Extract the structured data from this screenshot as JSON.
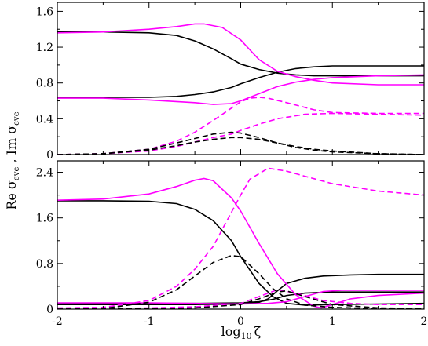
{
  "chart_data": [
    {
      "type": "line",
      "panel": "top",
      "xlim": [
        -2,
        2
      ],
      "ylim": [
        0,
        1.7
      ],
      "yticks": [
        "0",
        "0.4",
        "0.8",
        "1.2",
        "1.6"
      ],
      "ytick_values": [
        0,
        0.4,
        0.8,
        1.2,
        1.6
      ],
      "xticks": [
        "",
        "",
        "",
        "",
        ""
      ],
      "xtick_values": [
        -2,
        -1,
        0,
        1,
        2
      ],
      "grid": false,
      "series": [
        {
          "color": "#000000",
          "dash": "solid",
          "x": [
            -2,
            -1.5,
            -1,
            -0.7,
            -0.5,
            -0.3,
            -0.1,
            0,
            0.2,
            0.4,
            0.6,
            0.8,
            1,
            1.5,
            2
          ],
          "y": [
            1.37,
            1.37,
            1.36,
            1.33,
            1.27,
            1.18,
            1.07,
            1.01,
            0.95,
            0.91,
            0.89,
            0.88,
            0.88,
            0.88,
            0.88
          ]
        },
        {
          "color": "#000000",
          "dash": "solid",
          "x": [
            -2,
            -1.5,
            -1,
            -0.7,
            -0.5,
            -0.3,
            -0.1,
            0,
            0.2,
            0.4,
            0.6,
            0.8,
            1,
            1.5,
            2
          ],
          "y": [
            0.64,
            0.64,
            0.64,
            0.65,
            0.67,
            0.7,
            0.75,
            0.79,
            0.86,
            0.92,
            0.96,
            0.98,
            0.99,
            0.99,
            0.99
          ]
        },
        {
          "color": "#ff00ff",
          "dash": "solid",
          "x": [
            -2,
            -1.5,
            -1,
            -0.7,
            -0.5,
            -0.4,
            -0.2,
            0,
            0.1,
            0.2,
            0.4,
            0.6,
            0.8,
            1,
            1.5,
            2
          ],
          "y": [
            1.36,
            1.37,
            1.4,
            1.43,
            1.46,
            1.46,
            1.42,
            1.28,
            1.17,
            1.06,
            0.93,
            0.87,
            0.83,
            0.8,
            0.78,
            0.78
          ]
        },
        {
          "color": "#ff00ff",
          "dash": "solid",
          "x": [
            -2,
            -1.5,
            -1,
            -0.5,
            -0.3,
            -0.1,
            0,
            0.2,
            0.4,
            0.6,
            0.8,
            1,
            1.5,
            2
          ],
          "y": [
            0.63,
            0.63,
            0.61,
            0.58,
            0.56,
            0.57,
            0.6,
            0.68,
            0.76,
            0.81,
            0.84,
            0.86,
            0.88,
            0.89
          ]
        },
        {
          "color": "#ff00ff",
          "dash": "dashed",
          "x": [
            -2,
            -1.5,
            -1,
            -0.7,
            -0.5,
            -0.3,
            -0.1,
            0,
            0.1,
            0.2,
            0.3,
            0.5,
            0.8,
            1,
            1.5,
            2
          ],
          "y": [
            0,
            0.01,
            0.06,
            0.15,
            0.25,
            0.38,
            0.52,
            0.59,
            0.63,
            0.64,
            0.63,
            0.58,
            0.5,
            0.47,
            0.46,
            0.46
          ]
        },
        {
          "color": "#ff00ff",
          "dash": "dashed",
          "x": [
            -2,
            -1.5,
            -1,
            -0.7,
            -0.5,
            -0.3,
            -0.1,
            0,
            0.2,
            0.4,
            0.7,
            1,
            1.5,
            2
          ],
          "y": [
            0,
            0.01,
            0.04,
            0.09,
            0.14,
            0.19,
            0.23,
            0.27,
            0.34,
            0.4,
            0.45,
            0.46,
            0.45,
            0.44
          ]
        },
        {
          "color": "#000000",
          "dash": "dashed",
          "x": [
            -2,
            -1.5,
            -1,
            -0.7,
            -0.5,
            -0.3,
            -0.1,
            0,
            0.2,
            0.4,
            0.6,
            0.8,
            1,
            1.5,
            2
          ],
          "y": [
            0,
            0.01,
            0.06,
            0.13,
            0.18,
            0.23,
            0.25,
            0.24,
            0.19,
            0.13,
            0.08,
            0.05,
            0.03,
            0.01,
            0
          ]
        },
        {
          "color": "#000000",
          "dash": "dashed",
          "x": [
            -2,
            -1.5,
            -1,
            -0.7,
            -0.5,
            -0.3,
            -0.1,
            0,
            0.2,
            0.4,
            0.6,
            0.8,
            1,
            1.5,
            2
          ],
          "y": [
            0,
            0.01,
            0.05,
            0.1,
            0.14,
            0.17,
            0.19,
            0.19,
            0.17,
            0.13,
            0.09,
            0.06,
            0.04,
            0.01,
            0
          ]
        }
      ]
    },
    {
      "type": "line",
      "panel": "bottom",
      "xlim": [
        -2,
        2
      ],
      "ylim": [
        0,
        2.6
      ],
      "yticks": [
        "0",
        "0.8",
        "1.6",
        "2.4"
      ],
      "ytick_values": [
        0,
        0.8,
        1.6,
        2.4
      ],
      "xticks": [
        "-2",
        "-1",
        "0",
        "1",
        "2"
      ],
      "xtick_values": [
        -2,
        -1,
        0,
        1,
        2
      ],
      "xlabel": "log10 ζ",
      "ylabel": "Re σeve , Im σeve",
      "grid": false,
      "series": [
        {
          "color": "#000000",
          "dash": "solid",
          "x": [
            -2,
            -1.5,
            -1,
            -0.7,
            -0.5,
            -0.3,
            -0.1,
            0,
            0.2,
            0.35,
            0.5,
            0.7,
            1,
            1.5,
            2
          ],
          "y": [
            1.9,
            1.9,
            1.89,
            1.85,
            1.75,
            1.55,
            1.2,
            0.92,
            0.45,
            0.22,
            0.1,
            0.07,
            0.08,
            0.09,
            0.1
          ]
        },
        {
          "color": "#000000",
          "dash": "solid",
          "x": [
            -2,
            -1.5,
            -1,
            -0.5,
            0,
            0.2,
            0.3,
            0.4,
            0.5,
            0.7,
            0.9,
            1.2,
            1.5,
            2
          ],
          "y": [
            0.08,
            0.08,
            0.08,
            0.08,
            0.09,
            0.12,
            0.18,
            0.32,
            0.45,
            0.54,
            0.58,
            0.6,
            0.61,
            0.61
          ]
        },
        {
          "color": "#000000",
          "dash": "solid",
          "x": [
            -2,
            -1.5,
            -1,
            -0.5,
            0,
            0.2,
            0.35,
            0.5,
            0.7,
            1,
            1.5,
            2
          ],
          "y": [
            0.1,
            0.1,
            0.1,
            0.1,
            0.11,
            0.13,
            0.17,
            0.24,
            0.28,
            0.3,
            0.3,
            0.3
          ]
        },
        {
          "color": "#ff00ff",
          "dash": "solid",
          "x": [
            -2,
            -1.5,
            -1,
            -0.7,
            -0.5,
            -0.4,
            -0.3,
            -0.1,
            0,
            0.2,
            0.4,
            0.6,
            0.8,
            0.88,
            1,
            1.2,
            1.5,
            2
          ],
          "y": [
            1.91,
            1.93,
            2.02,
            2.15,
            2.26,
            2.29,
            2.25,
            1.95,
            1.72,
            1.15,
            0.62,
            0.25,
            0.05,
            0.02,
            0.08,
            0.18,
            0.24,
            0.28
          ]
        },
        {
          "color": "#ff00ff",
          "dash": "solid",
          "x": [
            -2,
            -1.5,
            -1,
            -0.5,
            0,
            0.3,
            0.5,
            0.7,
            0.9,
            1.1,
            1.5,
            2
          ],
          "y": [
            0.11,
            0.11,
            0.11,
            0.1,
            0.09,
            0.1,
            0.13,
            0.22,
            0.31,
            0.33,
            0.33,
            0.33
          ]
        },
        {
          "color": "#ff00ff",
          "dash": "dashed",
          "x": [
            -2,
            -1.5,
            -1,
            -0.7,
            -0.5,
            -0.3,
            -0.2,
            -0.1,
            0,
            0.1,
            0.3,
            0.5,
            0.7,
            1,
            1.5,
            2
          ],
          "y": [
            0.02,
            0.03,
            0.15,
            0.4,
            0.7,
            1.1,
            1.4,
            1.7,
            2.0,
            2.28,
            2.47,
            2.42,
            2.33,
            2.2,
            2.07,
            2.0
          ]
        },
        {
          "color": "#ff00ff",
          "dash": "dashed",
          "x": [
            -2,
            -1.5,
            -1,
            -0.5,
            0,
            0.2,
            0.4,
            0.6,
            0.9,
            1.2,
            1.5,
            2
          ],
          "y": [
            0.01,
            0.01,
            0.02,
            0.04,
            0.1,
            0.22,
            0.34,
            0.28,
            0.15,
            0.1,
            0.08,
            0.08
          ]
        },
        {
          "color": "#000000",
          "dash": "dashed",
          "x": [
            -2,
            -1.5,
            -1,
            -0.7,
            -0.5,
            -0.3,
            -0.1,
            0,
            0.2,
            0.35,
            0.5,
            0.7,
            1,
            1.5,
            2
          ],
          "y": [
            0,
            0.01,
            0.12,
            0.34,
            0.58,
            0.82,
            0.94,
            0.92,
            0.62,
            0.36,
            0.18,
            0.07,
            0.03,
            0.01,
            0
          ]
        },
        {
          "color": "#000000",
          "dash": "dashed",
          "x": [
            -2,
            -1.5,
            -1,
            -0.5,
            0,
            0.2,
            0.4,
            0.5,
            0.7,
            1,
            1.5,
            2
          ],
          "y": [
            0,
            0,
            0.01,
            0.02,
            0.08,
            0.18,
            0.3,
            0.32,
            0.22,
            0.08,
            0.02,
            0.01
          ]
        }
      ]
    }
  ]
}
